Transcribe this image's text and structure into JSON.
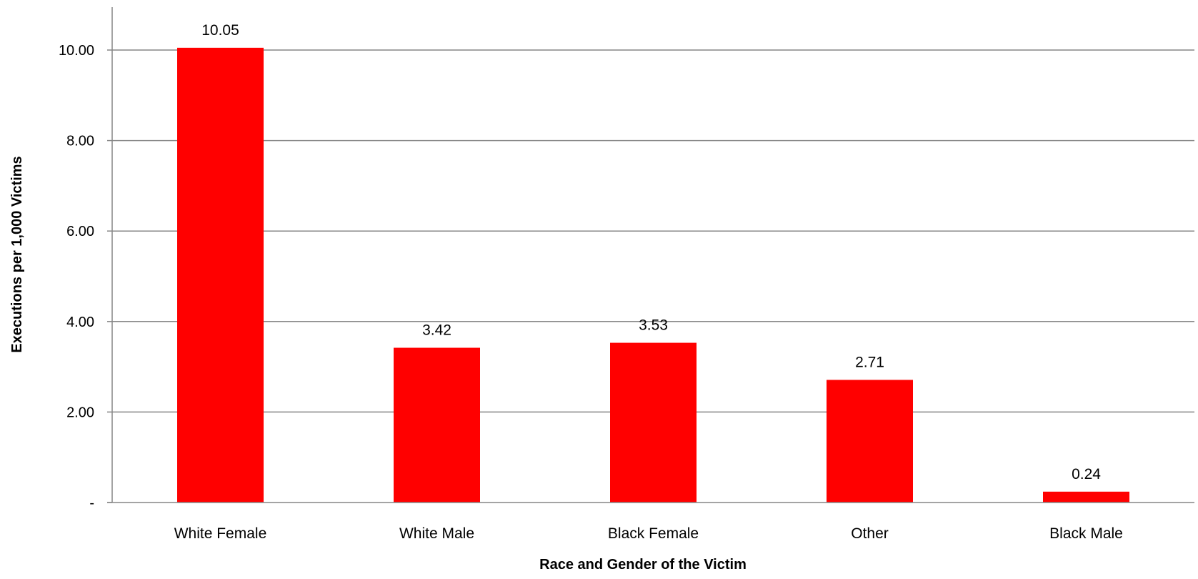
{
  "chart_data": {
    "type": "bar",
    "categories": [
      "White Female",
      "White Male",
      "Black Female",
      "Other",
      "Black Male"
    ],
    "values": [
      10.05,
      3.42,
      3.53,
      2.71,
      0.24
    ],
    "data_labels": [
      "10.05",
      "3.42",
      "3.53",
      "2.71",
      "0.24"
    ],
    "title": "",
    "xlabel": "Race and Gender of the Victim",
    "ylabel": "Executions per 1,000 Victims",
    "ylim": [
      0,
      10.99
    ],
    "yticks": [
      0,
      2,
      4,
      6,
      8,
      10
    ],
    "ytick_labels": [
      "-",
      "2.00",
      "4.00",
      "6.00",
      "8.00",
      "10.00"
    ],
    "grid": true,
    "legend": "none",
    "bar_color": "#ff0000",
    "grid_color": "#868686"
  }
}
